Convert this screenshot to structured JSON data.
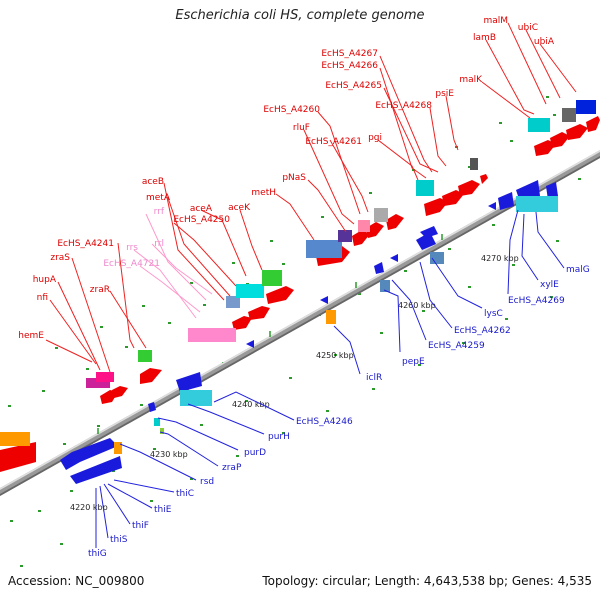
{
  "title": "Escherichia coli HS, complete genome",
  "footer": {
    "accession": "Accession: NC_009800",
    "stats": "Topology: circular; Length: 4,643,538 bp; Genes: 4,535"
  },
  "colors": {
    "forward_label": "#dd0000",
    "reverse_label": "#1a1acc",
    "rna_label": "#ee88cc",
    "backbone": "#999999",
    "tick": "#2a9a2a"
  },
  "scale_labels": [
    "4220 kbp",
    "4230 kbp",
    "4240 kbp",
    "4250 kbp",
    "4260 kbp",
    "4270 kbp"
  ],
  "forward_labels": [
    "hemE",
    "nfi",
    "hupA",
    "zraS",
    "EcHS_A4241",
    "zraR",
    "aceB",
    "metA",
    "EcHS_A4250",
    "aceA",
    "aceK",
    "metH",
    "pNaS",
    "EcHS_A4260",
    "rluF",
    "EcHS_A4261",
    "pgi",
    "EcHS_A4267",
    "EcHS_A4266",
    "EcHS_A4265",
    "EcHS_A4268",
    "psiE",
    "malK",
    "lamB",
    "malM",
    "ubiC",
    "ubiA"
  ],
  "rna_labels": [
    "rrf",
    "rrs",
    "EcHS_A4721",
    "rrl"
  ],
  "reverse_labels": [
    "thiG",
    "thiS",
    "thiF",
    "thiE",
    "thiC",
    "rsd",
    "zraP",
    "purD",
    "purH",
    "EcHS_A4246",
    "iclR",
    "pepE",
    "EcHS_A4259",
    "EcHS_A4262",
    "lysC",
    "EcHS_A4269",
    "xylE",
    "malG"
  ]
}
